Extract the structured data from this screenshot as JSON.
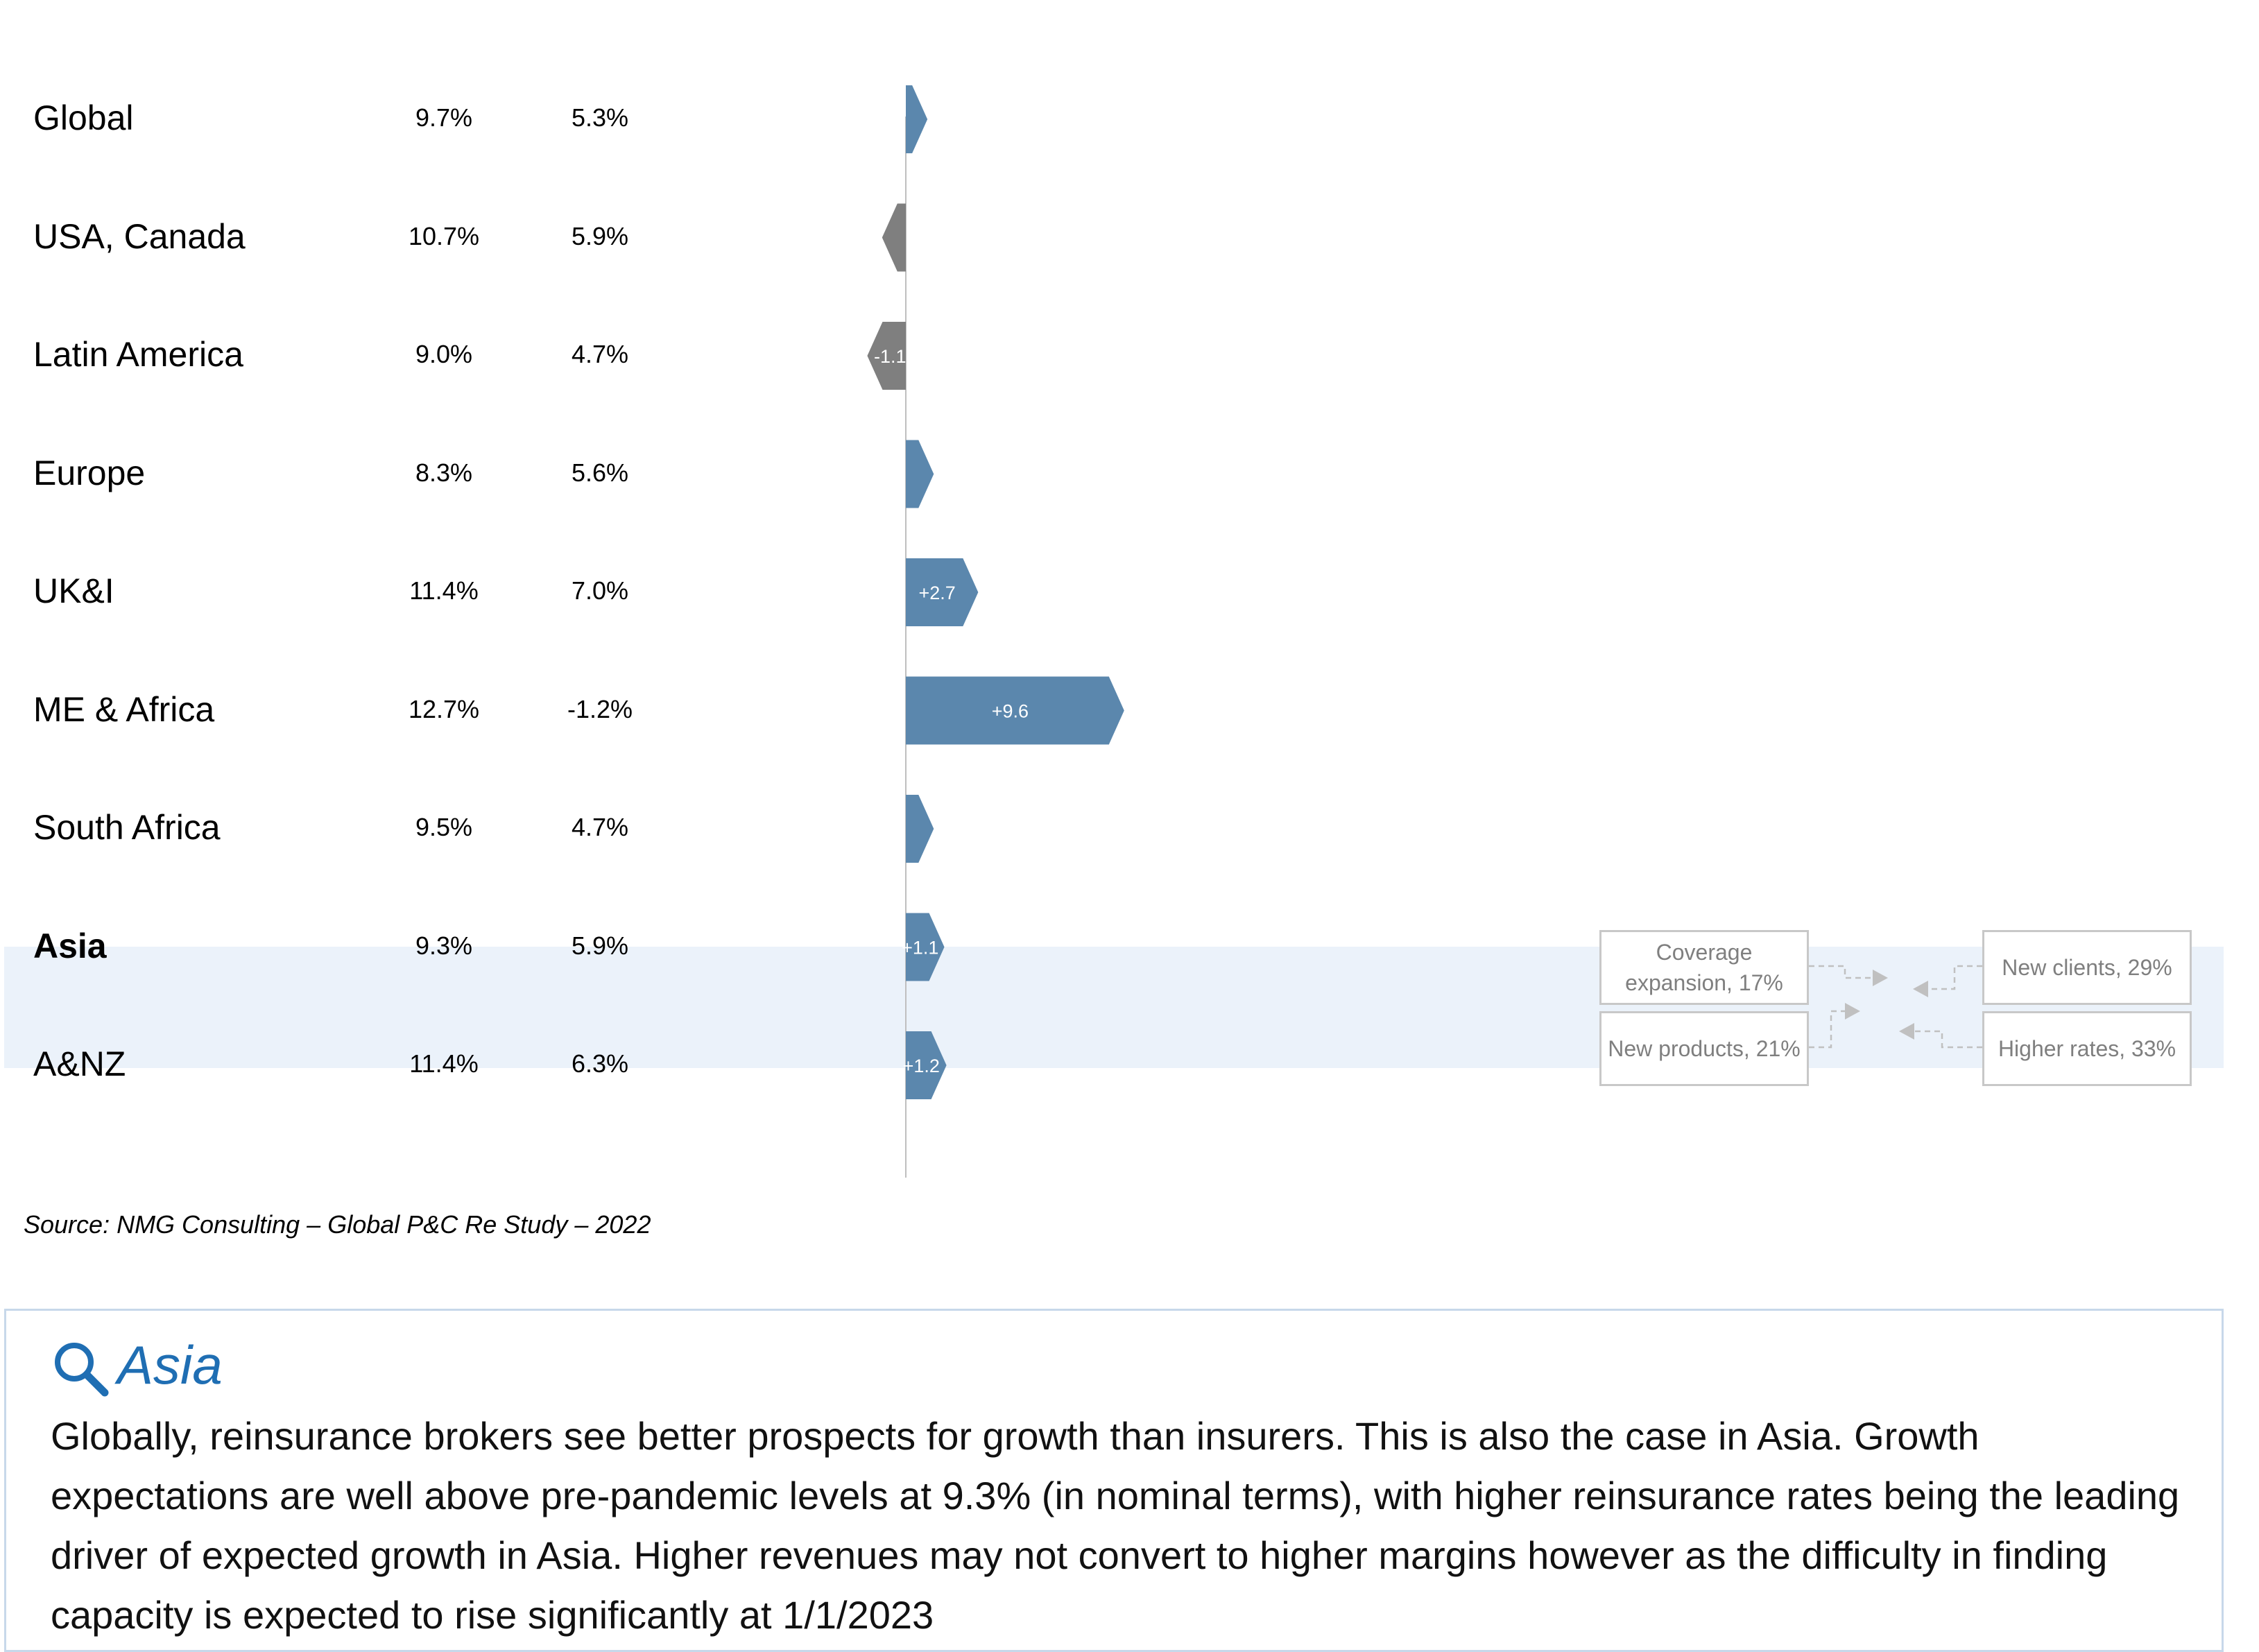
{
  "chart_data": {
    "type": "bar",
    "orientation": "horizontal",
    "categories": [
      "Global",
      "USA, Canada",
      "Latin America",
      "Europe",
      "UK&I",
      "ME & Africa",
      "South Africa",
      "Asia",
      "A&NZ"
    ],
    "columns": [
      {
        "values": [
          "9.7%",
          "10.7%",
          "9.0%",
          "8.3%",
          "11.4%",
          "12.7%",
          "9.5%",
          "9.3%",
          "11.4%"
        ]
      },
      {
        "values": [
          "5.3%",
          "5.9%",
          "4.7%",
          "5.6%",
          "7.0%",
          "-1.2%",
          "4.7%",
          "5.9%",
          "6.3%"
        ]
      }
    ],
    "values": [
      0.3,
      -0.4,
      -1.1,
      0.6,
      2.7,
      9.6,
      0.6,
      1.1,
      1.2
    ],
    "data_labels": [
      "",
      "",
      "-1.1",
      "",
      "+2.7",
      "+9.6",
      "",
      "+1.1",
      "+1.2"
    ],
    "highlighted_category": "Asia",
    "colors": {
      "positive": "#5b87ad",
      "negative": "#7f7f7f",
      "highlight_band": "#ebf2fa"
    }
  },
  "drivers": {
    "boxes": [
      "Coverage expansion, 17%",
      "New products, 21%",
      "New clients, 29%",
      "Higher rates, 33%"
    ]
  },
  "source": "Source: NMG Consulting – Global P&C Re Study – 2022",
  "insight": {
    "icon": "magnifier-icon",
    "title": "Asia",
    "text": "Globally, reinsurance brokers see better prospects for growth than insurers. This is also the case in Asia. Growth expectations are well above pre-pandemic levels at 9.3% (in nominal terms), with higher reinsurance rates being the leading driver of expected growth in Asia. Higher revenues may not convert to higher margins however as the difficulty in finding capacity is expected to rise significantly at 1/1/2023"
  }
}
